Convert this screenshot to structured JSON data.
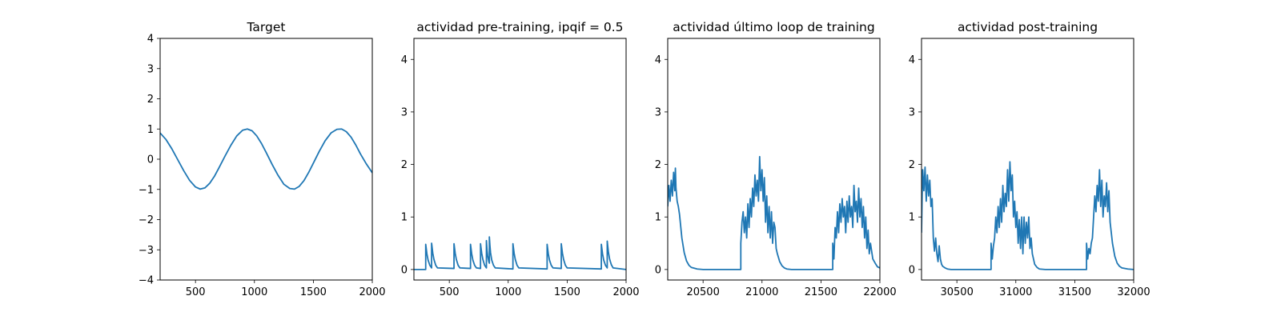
{
  "chart_data": [
    {
      "type": "line",
      "title": "Target",
      "xlim": [
        200,
        2000
      ],
      "ylim": [
        -4,
        4
      ],
      "xticks": [
        500,
        1000,
        1500,
        2000
      ],
      "yticks": [
        -4,
        -3,
        -2,
        -1,
        0,
        1,
        2,
        3,
        4
      ],
      "series": [
        {
          "color": "#1f77b4",
          "x": [
            200,
            250,
            300,
            350,
            400,
            450,
            500,
            540,
            580,
            620,
            660,
            700,
            750,
            800,
            850,
            900,
            940,
            980,
            1020,
            1060,
            1100,
            1150,
            1200,
            1250,
            1300,
            1340,
            1380,
            1420,
            1460,
            1500,
            1550,
            1600,
            1650,
            1700,
            1740,
            1780,
            1820,
            1860,
            1900,
            1950,
            2000
          ],
          "y": [
            0.87,
            0.65,
            0.34,
            -0.02,
            -0.38,
            -0.7,
            -0.92,
            -0.99,
            -0.95,
            -0.8,
            -0.57,
            -0.28,
            0.1,
            0.46,
            0.77,
            0.96,
            1.0,
            0.94,
            0.77,
            0.52,
            0.22,
            -0.17,
            -0.53,
            -0.83,
            -0.97,
            -0.99,
            -0.9,
            -0.71,
            -0.44,
            -0.13,
            0.26,
            0.61,
            0.87,
            0.99,
            1.0,
            0.91,
            0.73,
            0.47,
            0.17,
            -0.16,
            -0.45
          ]
        }
      ]
    },
    {
      "type": "line",
      "title": "actividad pre-training, ipqif = 0.5",
      "xlim": [
        200,
        2000
      ],
      "ylim": [
        -0.2,
        4.4
      ],
      "xticks": [
        500,
        1000,
        1500,
        2000
      ],
      "yticks": [
        0,
        1,
        2,
        3,
        4
      ],
      "series": [
        {
          "color": "#1f77b4",
          "x": [
            200,
            300,
            300,
            310,
            320,
            335,
            350,
            350,
            360,
            370,
            385,
            400,
            540,
            540,
            550,
            560,
            575,
            590,
            680,
            680,
            690,
            700,
            715,
            730,
            765,
            765,
            775,
            785,
            800,
            815,
            815,
            820,
            825,
            835,
            840,
            840,
            845,
            850,
            860,
            875,
            890,
            1040,
            1040,
            1050,
            1060,
            1075,
            1090,
            1330,
            1330,
            1340,
            1350,
            1365,
            1380,
            1450,
            1450,
            1460,
            1470,
            1485,
            1500,
            1790,
            1790,
            1800,
            1810,
            1825,
            1840,
            1840,
            1850,
            1860,
            1875,
            1890,
            2000
          ],
          "y": [
            0,
            0,
            0.48,
            0.3,
            0.18,
            0.08,
            0.03,
            0.5,
            0.31,
            0.19,
            0.08,
            0.03,
            0.02,
            0.49,
            0.31,
            0.19,
            0.08,
            0.03,
            0.02,
            0.48,
            0.3,
            0.18,
            0.08,
            0.03,
            0.02,
            0.49,
            0.31,
            0.19,
            0.08,
            0.03,
            0.55,
            0.38,
            0.27,
            0.15,
            0.12,
            0.62,
            0.45,
            0.32,
            0.18,
            0.08,
            0.03,
            0.01,
            0.49,
            0.31,
            0.19,
            0.08,
            0.03,
            0.01,
            0.48,
            0.3,
            0.18,
            0.08,
            0.03,
            0.02,
            0.49,
            0.31,
            0.19,
            0.08,
            0.03,
            0.01,
            0.48,
            0.3,
            0.18,
            0.08,
            0.03,
            0.54,
            0.33,
            0.2,
            0.09,
            0.03,
            0.0
          ]
        }
      ]
    },
    {
      "type": "line",
      "title": "actividad último loop de training",
      "xlim": [
        20200,
        22000
      ],
      "ylim": [
        -0.2,
        4.4
      ],
      "xticks": [
        20500,
        21000,
        21500,
        22000
      ],
      "yticks": [
        0,
        1,
        2,
        3,
        4
      ],
      "series": [
        {
          "color": "#1f77b4",
          "x": [
            20200,
            20210,
            20220,
            20230,
            20240,
            20250,
            20260,
            20265,
            20270,
            20280,
            20290,
            20300,
            20320,
            20340,
            20360,
            20380,
            20400,
            20450,
            20500,
            20600,
            20700,
            20820,
            20820,
            20830,
            20840,
            20850,
            20860,
            20870,
            20880,
            20890,
            20900,
            20910,
            20920,
            20930,
            20940,
            20950,
            20960,
            20970,
            20980,
            20990,
            21000,
            21010,
            21020,
            21030,
            21040,
            21050,
            21060,
            21070,
            21080,
            21090,
            21100,
            21110,
            21120,
            21130,
            21150,
            21170,
            21190,
            21210,
            21250,
            21300,
            21400,
            21500,
            21600,
            21600,
            21610,
            21620,
            21630,
            21640,
            21650,
            21660,
            21670,
            21680,
            21690,
            21700,
            21710,
            21720,
            21730,
            21740,
            21750,
            21760,
            21770,
            21780,
            21790,
            21800,
            21810,
            21820,
            21830,
            21840,
            21850,
            21860,
            21870,
            21880,
            21890,
            21900,
            21910,
            21920,
            21940,
            21960,
            21980,
            22000
          ],
          "y": [
            1.2,
            1.6,
            1.3,
            1.7,
            1.4,
            1.85,
            1.5,
            1.93,
            1.55,
            1.3,
            1.2,
            1.05,
            0.6,
            0.32,
            0.16,
            0.08,
            0.04,
            0.01,
            0.0,
            0.0,
            0.0,
            0.0,
            0.5,
            0.9,
            1.1,
            0.7,
            1.0,
            0.6,
            1.25,
            0.8,
            1.35,
            1.0,
            1.55,
            1.2,
            1.8,
            1.4,
            1.7,
            1.3,
            2.15,
            1.5,
            1.9,
            1.3,
            1.75,
            0.9,
            1.4,
            0.7,
            1.2,
            0.6,
            1.1,
            0.5,
            0.9,
            0.8,
            0.4,
            0.3,
            0.15,
            0.07,
            0.03,
            0.01,
            0.0,
            0.0,
            0.0,
            0.0,
            0.0,
            0.5,
            0.2,
            0.8,
            0.6,
            1.1,
            0.7,
            1.25,
            0.9,
            1.35,
            1.0,
            1.2,
            0.7,
            1.3,
            0.9,
            1.4,
            1.0,
            1.2,
            0.8,
            1.6,
            1.1,
            1.3,
            0.9,
            1.55,
            1.0,
            1.35,
            0.8,
            1.2,
            0.6,
            1.0,
            0.4,
            0.75,
            0.3,
            0.5,
            0.2,
            0.12,
            0.05,
            0.03
          ]
        }
      ]
    },
    {
      "type": "line",
      "title": "actividad post-training",
      "xlim": [
        30200,
        32000
      ],
      "ylim": [
        -0.2,
        4.4
      ],
      "xticks": [
        30500,
        31000,
        31500,
        32000
      ],
      "yticks": [
        0,
        1,
        2,
        3,
        4
      ],
      "series": [
        {
          "color": "#1f77b4",
          "x": [
            30200,
            30205,
            30210,
            30220,
            30230,
            30240,
            30250,
            30260,
            30270,
            30280,
            30290,
            30300,
            30310,
            30320,
            30330,
            30340,
            30345,
            30350,
            30360,
            30370,
            30380,
            30400,
            30420,
            30450,
            30500,
            30600,
            30700,
            30790,
            30790,
            30800,
            30810,
            30820,
            30830,
            30840,
            30850,
            30860,
            30870,
            30880,
            30890,
            30900,
            30910,
            30920,
            30930,
            30940,
            30950,
            30960,
            30970,
            30980,
            30990,
            31000,
            31010,
            31020,
            31030,
            31040,
            31050,
            31060,
            31070,
            31080,
            31090,
            31100,
            31110,
            31120,
            31130,
            31140,
            31150,
            31160,
            31180,
            31200,
            31250,
            31300,
            31400,
            31500,
            31600,
            31600,
            31610,
            31620,
            31630,
            31640,
            31650,
            31660,
            31670,
            31680,
            31690,
            31700,
            31710,
            31720,
            31730,
            31740,
            31750,
            31760,
            31770,
            31780,
            31790,
            31800,
            31820,
            31840,
            31860,
            31880,
            31900,
            31950,
            32000
          ],
          "y": [
            0.7,
            1.4,
            1.9,
            1.5,
            1.95,
            1.3,
            1.8,
            1.4,
            1.7,
            1.2,
            1.35,
            0.6,
            0.35,
            0.6,
            0.3,
            0.15,
            0.3,
            0.45,
            0.2,
            0.1,
            0.06,
            0.03,
            0.01,
            0.0,
            0.0,
            0.0,
            0.0,
            0.0,
            0.5,
            0.2,
            0.45,
            0.6,
            1.0,
            0.7,
            1.2,
            0.8,
            1.35,
            0.9,
            1.6,
            1.1,
            1.45,
            1.2,
            1.9,
            1.3,
            2.05,
            1.5,
            1.8,
            1.0,
            1.3,
            0.8,
            1.1,
            0.5,
            0.95,
            0.4,
            1.0,
            0.3,
            1.0,
            0.5,
            0.9,
            0.6,
            1.0,
            0.4,
            0.6,
            0.3,
            0.2,
            0.1,
            0.04,
            0.01,
            0.0,
            0.0,
            0.0,
            0.0,
            0.0,
            0.5,
            0.2,
            0.4,
            0.3,
            0.5,
            0.6,
            1.0,
            1.4,
            1.1,
            1.6,
            1.3,
            1.9,
            1.2,
            1.7,
            1.0,
            1.4,
            1.2,
            1.65,
            1.1,
            1.5,
            0.9,
            0.5,
            0.25,
            0.12,
            0.06,
            0.03,
            0.01,
            0.0
          ]
        }
      ]
    }
  ]
}
